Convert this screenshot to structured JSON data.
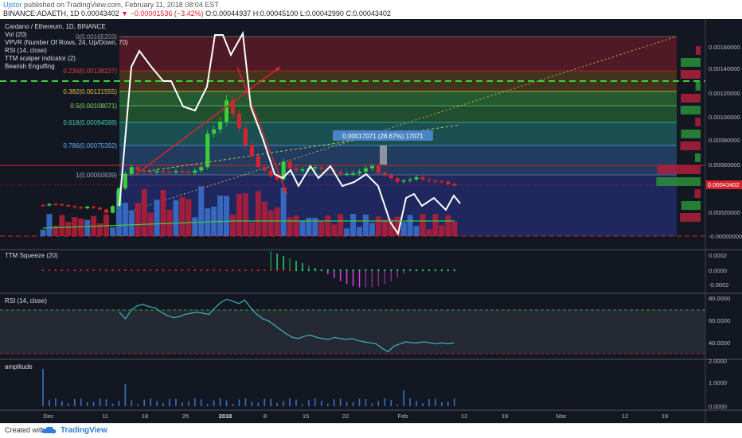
{
  "header": {
    "user": "Ujstor",
    "published": " published on TradingView.com, February 11, 2018 08:04 EST",
    "symbol": "BINANCE:ADAETH, 1D",
    "last": "0.00043402",
    "change": "−0.00001536 (−3.42%)",
    "o": "O:0.00044937",
    "h": "H:0.00045100",
    "l": "L:0.00042990",
    "c": "C:0.00043402"
  },
  "legend": {
    "title": "Cardano / Ethereum, 1D, BINANCE",
    "items": [
      "Vol (20)",
      "VPVR (Number Of Rows, 24, Up/Down, 70)",
      "RSI (14, close)",
      "TTM scalper indicator (2)",
      "Bearish Engulfing"
    ]
  },
  "price_badge": "0.00043402",
  "measure_label": "0.00017071 (28.67%) 17071",
  "footer": {
    "created": "Created with",
    "brand": "TradingView"
  },
  "colors": {
    "up": "#3a7bd5",
    "down": "#d9232e",
    "bg": "#131722",
    "rsi": "#3ec1c9",
    "white_line": "#ffffff",
    "fib_red": "#7a1f2b",
    "fib_green": "#2a6b35",
    "fib_teal": "#1e5f60",
    "fib_blue": "#26466e"
  },
  "chart_data": [
    {
      "type": "candlestick",
      "title": "Cardano / Ethereum, 1D, BINANCE",
      "x_ticks": [
        "Dec",
        "11",
        "18",
        "25",
        "2018",
        "8",
        "15",
        "22",
        "Feb",
        "12",
        "19",
        "Mar",
        "12",
        "19"
      ],
      "y_ticks": [
        "0.00160000",
        "0.00140000",
        "0.00120000",
        "0.00100000",
        "0.00080000",
        "0.00060000",
        "0.00040000",
        "0.00020000",
        "-0.00000000"
      ],
      "ylim": [
        -2e-05,
        0.00176
      ],
      "fib_levels": [
        {
          "label": "0(0.00165203)",
          "value": 0.00165203
        },
        {
          "label": "0.236(0.00138237)",
          "value": 0.00138237
        },
        {
          "label": "0.382(0.00121555)",
          "value": 0.00121555
        },
        {
          "label": "0.5(0.00108071)",
          "value": 0.00108071
        },
        {
          "label": "0.618(0.00094588)",
          "value": 0.00094588
        },
        {
          "label": "0.786(0.00075392)",
          "value": 0.00075392
        },
        {
          "label": "1(0.00050939)",
          "value": 0.00050939
        }
      ],
      "close": [
        0.000255,
        0.000268,
        0.000266,
        0.000259,
        0.00025,
        0.00024,
        0.00023,
        0.000245,
        0.000235,
        0.00022,
        0.00019,
        0.00025,
        0.00041,
        0.00054,
        0.0006,
        0.00057,
        0.00056,
        0.000555,
        0.000565,
        0.00056,
        0.000555,
        0.000565,
        0.00056,
        0.00055,
        0.00057,
        0.0006,
        0.0009,
        0.00094,
        0.00101,
        0.0012,
        0.00108,
        0.00095,
        0.0008,
        0.0007,
        0.0006,
        0.00057,
        0.00052,
        0.00049,
        0.00065,
        0.00059,
        0.00057,
        0.00058,
        0.00059,
        0.0006,
        0.00058,
        0.00057,
        0.00056,
        0.00054,
        0.00054,
        0.000545,
        0.00056,
        0.00059,
        0.00061,
        0.00055,
        0.00053,
        0.0005,
        0.00047,
        0.00048,
        0.00049,
        0.00051,
        0.00049,
        0.00048,
        0.000475,
        0.00047,
        0.000449,
        0.000434
      ],
      "series": [
        {
          "name": "Vol (20)",
          "type": "bar"
        },
        {
          "name": "TTM Squeeze (20)",
          "type": "histogram",
          "y_ticks": [
            "0.0002",
            "0.0000",
            "-0.0002"
          ]
        },
        {
          "name": "RSI (14, close)",
          "type": "line",
          "y_ticks": [
            "80.0000",
            "60.0000",
            "40.0000"
          ],
          "values": [
            68,
            62,
            70,
            74,
            75,
            73,
            72,
            68,
            65,
            63,
            64,
            66,
            67,
            68,
            67,
            66,
            72,
            77,
            80,
            78,
            76,
            79,
            72,
            66,
            62,
            60,
            56,
            52,
            48,
            45,
            44,
            46,
            47,
            45,
            44,
            43,
            45,
            44,
            43,
            44,
            42,
            41,
            40,
            39,
            35,
            32,
            37,
            39,
            41,
            40,
            40,
            41,
            40,
            39,
            40,
            39,
            40
          ]
        },
        {
          "name": "amplitude",
          "type": "bar",
          "y_ticks": [
            "2.0000",
            "1.0000",
            "0.0000"
          ]
        }
      ]
    }
  ]
}
